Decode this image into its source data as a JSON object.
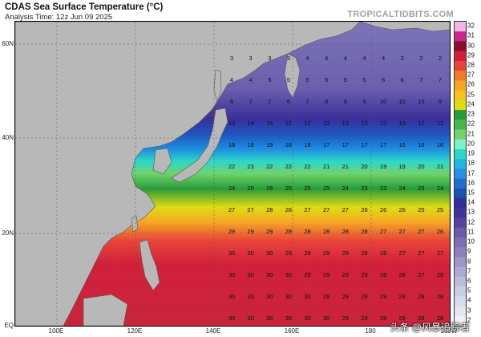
{
  "header": {
    "title": "CDAS Sea Surface Temperature (°C)",
    "subtitle": "Analysis Time: 12z Jun 09 2025",
    "brand": "TROPICALTIDBITS.COM"
  },
  "map": {
    "lat_labels": [
      "60N",
      "40N",
      "20N",
      "EQ"
    ],
    "lon_labels": [
      "100E",
      "120E",
      "140E",
      "160E",
      "180",
      "160W"
    ],
    "colorbar_ticks": [
      "32",
      "31",
      "30",
      "29",
      "28",
      "27",
      "26",
      "25",
      "24",
      "23",
      "22",
      "21",
      "20",
      "19",
      "18",
      "17",
      "16",
      "15",
      "14",
      "13",
      "12",
      "11",
      "10",
      "9",
      "8",
      "7",
      "6",
      "5",
      "4",
      "3",
      "2"
    ],
    "colorbar_colors": [
      "#f2b6e6",
      "#c8278f",
      "#8a0f2c",
      "#d11f3c",
      "#e8453a",
      "#f07a2a",
      "#f5a623",
      "#f7c21e",
      "#e0dc14",
      "#2a9b3a",
      "#46b84a",
      "#6fd36a",
      "#7ef0c8",
      "#2dd8c8",
      "#20b8e0",
      "#2a8fe8",
      "#1f6fd2",
      "#1c4fb2",
      "#2a2f9a",
      "#40349c",
      "#56439f",
      "#6b5aa8",
      "#7c6fb3",
      "#8a82bd",
      "#9c98c8",
      "#aaaad2",
      "#bcbddc",
      "#cacde6",
      "#d6dced",
      "#e2e8f2",
      "#eef2f8"
    ],
    "sst_rows": [
      {
        "lat": "58N",
        "values": [
          3,
          3,
          3,
          3,
          4,
          4,
          4,
          4,
          4,
          3,
          2,
          2
        ]
      },
      {
        "lat": "52N",
        "values": [
          4,
          4,
          5,
          5,
          5,
          5,
          5,
          5,
          6,
          6,
          7,
          7
        ]
      },
      {
        "lat": "45N",
        "values": [
          8,
          7,
          7,
          6,
          7,
          8,
          9,
          9,
          10,
          10,
          10,
          9
        ]
      },
      {
        "lat": "41N",
        "values": [
          13,
          14,
          14,
          12,
          12,
          13,
          13,
          13,
          13,
          13,
          12,
          12
        ]
      },
      {
        "lat": "37N",
        "values": [
          18,
          18,
          19,
          18,
          18,
          17,
          17,
          17,
          17,
          16,
          16,
          16
        ]
      },
      {
        "lat": "33N",
        "values": [
          22,
          23,
          22,
          22,
          22,
          21,
          21,
          20,
          19,
          19,
          20,
          21
        ]
      },
      {
        "lat": "29N",
        "values": [
          24,
          25,
          26,
          25,
          25,
          25,
          24,
          23,
          23,
          24,
          25,
          24
        ]
      },
      {
        "lat": "25N",
        "values": [
          27,
          27,
          28,
          28,
          27,
          27,
          27,
          26,
          26,
          26,
          25,
          25
        ]
      },
      {
        "lat": "21N",
        "values": [
          29,
          29,
          29,
          28,
          28,
          28,
          28,
          28,
          27,
          27,
          27,
          26
        ]
      },
      {
        "lat": "16N",
        "values": [
          30,
          30,
          30,
          29,
          29,
          29,
          29,
          28,
          28,
          27,
          27,
          27
        ]
      },
      {
        "lat": "11N",
        "values": [
          30,
          30,
          30,
          30,
          29,
          29,
          29,
          29,
          28,
          28,
          27,
          28
        ]
      },
      {
        "lat": "6N",
        "values": [
          30,
          30,
          30,
          30,
          30,
          29,
          29,
          29,
          29,
          28,
          28,
          28
        ]
      },
      {
        "lat": "2N",
        "values": [
          30,
          30,
          30,
          30,
          30,
          30,
          29,
          29,
          29,
          29,
          28,
          28
        ]
      }
    ]
  },
  "watermark": "头条 @风暴追踪者"
}
